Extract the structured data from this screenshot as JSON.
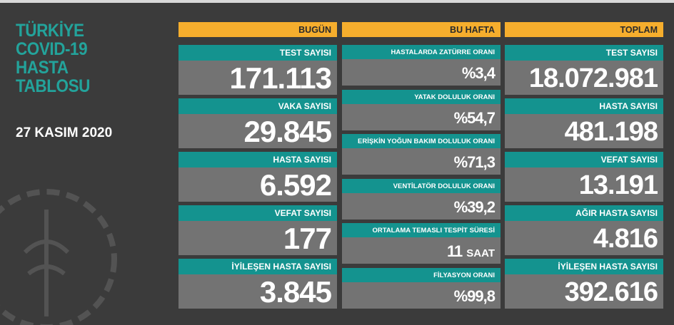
{
  "header": {
    "title": [
      "TÜRKİYE",
      "COVID-19",
      "HASTA",
      "TABLOSU"
    ],
    "date": "27 KASIM 2020"
  },
  "columns": [
    {
      "title": "BUGÜN",
      "cells": [
        {
          "label": "TEST SAYISI",
          "value": "171.113"
        },
        {
          "label": "VAKA SAYISI",
          "value": "29.845"
        },
        {
          "label": "HASTA SAYISI",
          "value": "6.592"
        },
        {
          "label": "VEFAT SAYISI",
          "value": "177"
        },
        {
          "label": "İYİLEŞEN HASTA SAYISI",
          "value": "3.845"
        }
      ]
    },
    {
      "title": "BU HAFTA",
      "cells": [
        {
          "label": "HASTALARDA ZATÜRRE ORANI",
          "value": "%3,4"
        },
        {
          "label": "YATAK DOLULUK ORANI",
          "value": "%54,7"
        },
        {
          "label": "ERİŞKİN YOĞUN BAKIM DOLULUK ORANI",
          "value": "%71,3"
        },
        {
          "label": "VENTİLATÖR DOLULUK ORANI",
          "value": "%39,2"
        },
        {
          "label": "ORTALAMA TEMASLI TESPİT SÜRESİ",
          "value": "11",
          "unit": "SAAT"
        },
        {
          "label": "FİLYASYON ORANI",
          "value": "%99,8"
        }
      ]
    },
    {
      "title": "TOPLAM",
      "cells": [
        {
          "label": "TEST SAYISI",
          "value": "18.072.981"
        },
        {
          "label": "HASTA SAYISI",
          "value": "481.198"
        },
        {
          "label": "VEFAT SAYISI",
          "value": "13.191"
        },
        {
          "label": "AĞIR HASTA SAYISI",
          "value": "4.816"
        },
        {
          "label": "İYİLEŞEN HASTA SAYISI",
          "value": "392.616"
        }
      ]
    }
  ]
}
